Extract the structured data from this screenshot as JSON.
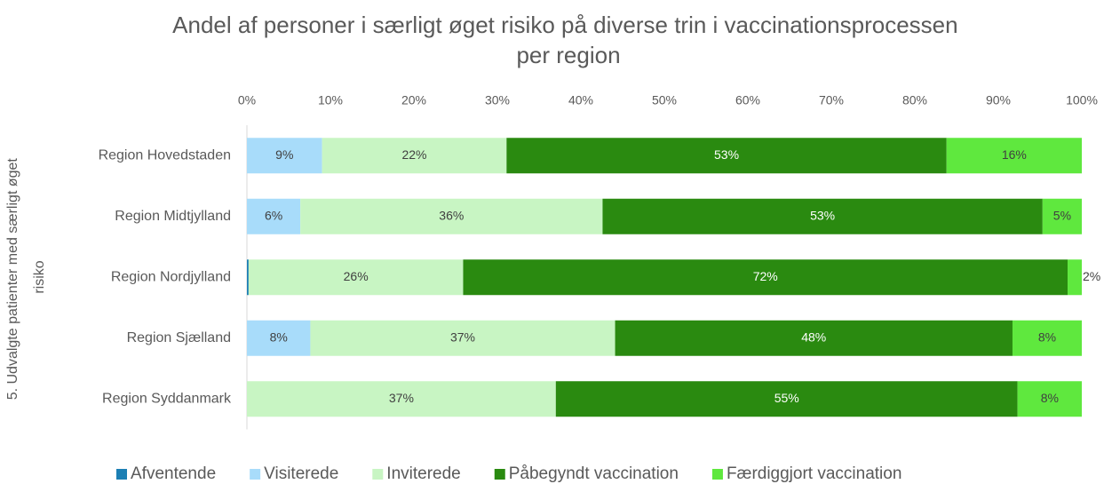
{
  "chart_data": {
    "type": "stacked_barh",
    "title": "Andel af personer i særligt øget risiko på diverse trin i vaccinationsprocessen per region",
    "y_label": "5. Udvalgte patienter med særligt øget risiko",
    "categories": [
      "Region Hovedstaden",
      "Region Midtjylland",
      "Region Nordjylland",
      "Region Sjælland",
      "Region Syddanmark"
    ],
    "series": [
      {
        "name": "Afventende",
        "color": "#1c7fb4",
        "values": [
          0,
          0,
          0.2,
          0,
          0
        ],
        "value_labels": [
          null,
          null,
          null,
          null,
          null
        ]
      },
      {
        "name": "Visiterede",
        "color": "#a8dcfa",
        "values": [
          9.0,
          6.4,
          0,
          7.6,
          0
        ],
        "value_labels": [
          "9%",
          "6%",
          null,
          "8%",
          null
        ]
      },
      {
        "name": "Inviterede",
        "color": "#c8f5c3",
        "values": [
          22.1,
          36.2,
          25.7,
          36.5,
          37.0
        ],
        "value_labels": [
          "22%",
          "36%",
          "26%",
          "37%",
          "37%"
        ]
      },
      {
        "name": "Påbegyndt vaccination",
        "color": "#2a8a10",
        "values": [
          52.7,
          52.7,
          72.4,
          47.6,
          55.3
        ],
        "value_labels": [
          "53%",
          "53%",
          "72%",
          "48%",
          "55%"
        ]
      },
      {
        "name": "Færdiggjort vaccination",
        "color": "#5fe83e",
        "values": [
          16.2,
          4.7,
          1.7,
          8.3,
          7.7
        ],
        "value_labels": [
          "16%",
          "5%",
          "2%",
          "8%",
          "8%"
        ]
      }
    ],
    "xlim": [
      0,
      100
    ],
    "xticks": [
      {
        "value": 0,
        "label": "0%"
      },
      {
        "value": 10,
        "label": "10%"
      },
      {
        "value": 20,
        "label": "20%"
      },
      {
        "value": 30,
        "label": "30%"
      },
      {
        "value": 40,
        "label": "40%"
      },
      {
        "value": 50,
        "label": "50%"
      },
      {
        "value": 60,
        "label": "60%"
      },
      {
        "value": 70,
        "label": "70%"
      },
      {
        "value": 80,
        "label": "80%"
      },
      {
        "value": 90,
        "label": "90%"
      },
      {
        "value": 100,
        "label": "100%"
      }
    ],
    "legend": "bottom"
  }
}
